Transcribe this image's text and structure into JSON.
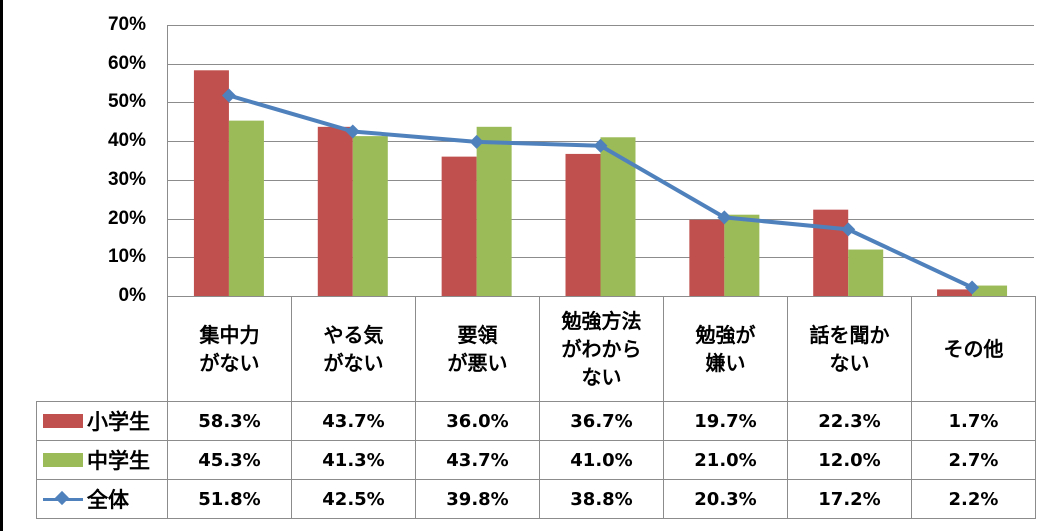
{
  "chart_data": {
    "type": "bar",
    "combo": "bar+line",
    "title": "",
    "xlabel": "",
    "ylabel": "",
    "ylim": [
      0,
      70
    ],
    "yticks": [
      "0%",
      "10%",
      "20%",
      "30%",
      "40%",
      "50%",
      "60%",
      "70%"
    ],
    "grid": true,
    "legend_position": "data-table-left",
    "categories": [
      "集中力がない",
      "やる気がない",
      "要領が悪い",
      "勉強方法がわからない",
      "勉強が嫌い",
      "話を聞かない",
      "その他"
    ],
    "category_lines": [
      [
        "集中力",
        "がない"
      ],
      [
        "やる気",
        "がない"
      ],
      [
        "要領",
        "が悪い"
      ],
      [
        "勉強方法",
        "がわから",
        "ない"
      ],
      [
        "勉強が",
        "嫌い"
      ],
      [
        "話を聞か",
        "ない"
      ],
      [
        "その他"
      ]
    ],
    "series": [
      {
        "name": "小学生",
        "type": "bar",
        "color": "#c0504d",
        "values": [
          58.3,
          43.7,
          36.0,
          36.7,
          19.7,
          22.3,
          1.7
        ],
        "labels": [
          "58.3%",
          "43.7%",
          "36.0%",
          "36.7%",
          "19.7%",
          "22.3%",
          "1.7%"
        ]
      },
      {
        "name": "中学生",
        "type": "bar",
        "color": "#9bbb59",
        "values": [
          45.3,
          41.3,
          43.7,
          41.0,
          21.0,
          12.0,
          2.7
        ],
        "labels": [
          "45.3%",
          "41.3%",
          "43.7%",
          "41.0%",
          "21.0%",
          "12.0%",
          "2.7%"
        ]
      },
      {
        "name": "全体",
        "type": "line",
        "marker": "diamond",
        "color": "#4f81bd",
        "values": [
          51.8,
          42.5,
          39.8,
          38.8,
          20.3,
          17.2,
          2.2
        ],
        "labels": [
          "51.8%",
          "42.5%",
          "39.8%",
          "38.8%",
          "20.3%",
          "17.2%",
          "2.2%"
        ]
      }
    ]
  },
  "colors": {
    "grid": "#8c8c8c",
    "border": "#8c8c8c"
  }
}
